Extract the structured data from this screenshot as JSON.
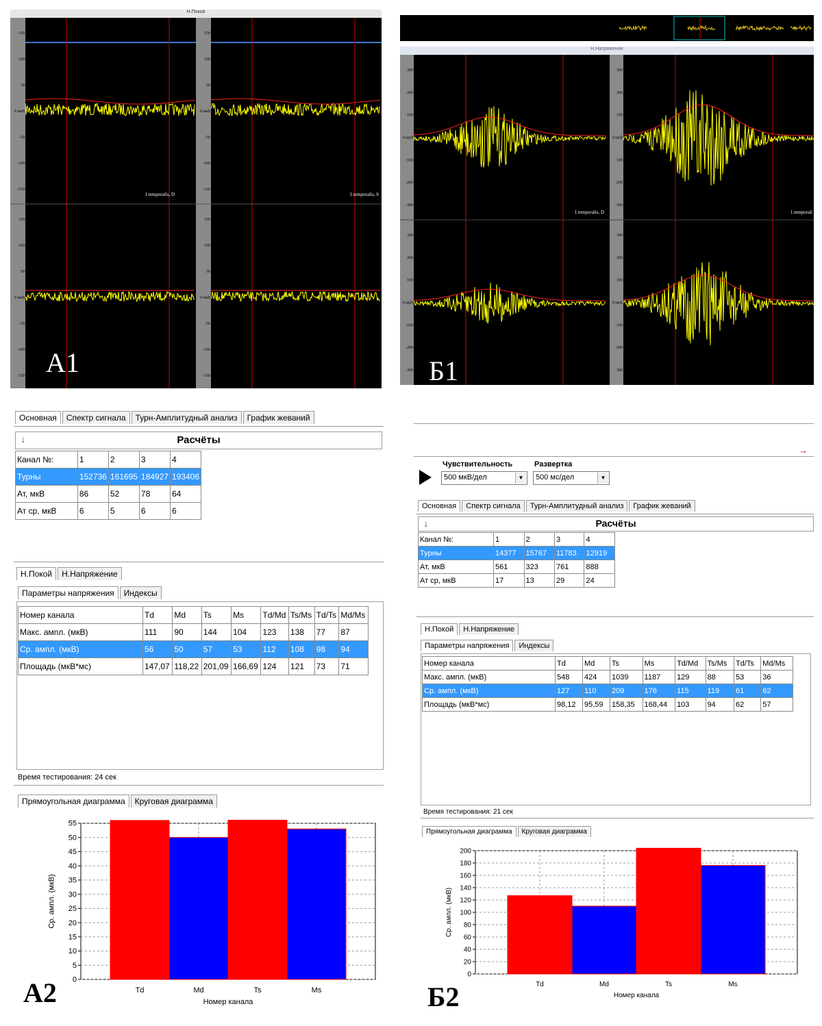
{
  "panels": {
    "a1": {
      "label": "A1",
      "window_title": "Н.Покой",
      "amp_ticks_left": [
        "150",
        "100",
        "50",
        "0 мкВ",
        "-50",
        "-100",
        "-150"
      ],
      "amp_ticks_right": [
        "150",
        "100",
        "50",
        "0 мкВ",
        "-50",
        "-100",
        "-150"
      ],
      "channel_labels": [
        "1.temporalis, D",
        "1.temporalis, S"
      ]
    },
    "b1": {
      "label": "Б1",
      "window_title": "Н.Напряжение",
      "amp_ticks": [
        "300",
        "200",
        "100",
        "0 мкВ",
        "-100",
        "-200",
        "-300"
      ],
      "channel_labels": [
        "1.temporalis, D",
        "1.temporali"
      ]
    },
    "a2": {
      "label": "A2",
      "main_tabs": [
        "Основная",
        "Спектр сигнала",
        "Турн-Амплитудный анализ",
        "График жеваний"
      ],
      "calc_title": "Расчёты",
      "calc_table": {
        "header": [
          "Канал №:",
          "1",
          "2",
          "3",
          "4"
        ],
        "rows": [
          [
            "Турны",
            "152736",
            "161695",
            "184927",
            "193406"
          ],
          [
            "Ат, мкВ",
            "86",
            "52",
            "78",
            "64"
          ],
          [
            "Ат ср, мкВ",
            "6",
            "5",
            "6",
            "6"
          ]
        ]
      },
      "mode_tabs": [
        "Н.Покой",
        "Н.Напряжение"
      ],
      "sub_tabs": [
        "Параметры напряжения",
        "Индексы"
      ],
      "param_table": {
        "header": [
          "Номер канала",
          "Td",
          "Md",
          "Ts",
          "Ms",
          "Td/Md",
          "Ts/Ms",
          "Td/Ts",
          "Md/Ms"
        ],
        "rows": [
          [
            "Макс. ампл. (мкВ)",
            "111",
            "90",
            "144",
            "104",
            "123",
            "138",
            "77",
            "87"
          ],
          [
            "Ср. ампл. (мкВ)",
            "56",
            "50",
            "57",
            "53",
            "112",
            "108",
            "98",
            "94"
          ],
          [
            "Площадь (мкВ*мс)",
            "147,07",
            "118,22",
            "201,09",
            "166,69",
            "124",
            "121",
            "73",
            "71"
          ]
        ]
      },
      "test_time": "Время тестирования: 24 сек",
      "chart_tabs": [
        "Прямоугольная диаграмма",
        "Круговая диаграмма"
      ]
    },
    "b2": {
      "label": "Б2",
      "sensitivity_label": "Чувствительность",
      "sensitivity_value": "500 мкВ/дел",
      "sweep_label": "Развертка",
      "sweep_value": "500 мс/дел",
      "main_tabs": [
        "Основная",
        "Спектр сигнала",
        "Турн-Амплитудный анализ",
        "График жеваний"
      ],
      "calc_title": "Расчёты",
      "calc_table": {
        "header": [
          "Канал №:",
          "1",
          "2",
          "3",
          "4"
        ],
        "rows": [
          [
            "Турны",
            "14377",
            "15767",
            "11783",
            "12919"
          ],
          [
            "Ат, мкВ",
            "561",
            "323",
            "761",
            "888"
          ],
          [
            "Ат ср, мкВ",
            "17",
            "13",
            "29",
            "24"
          ]
        ]
      },
      "mode_tabs": [
        "Н.Покой",
        "Н.Напряжение"
      ],
      "sub_tabs": [
        "Параметры напряжения",
        "Индексы"
      ],
      "param_table": {
        "header": [
          "Номер канала",
          "Td",
          "Md",
          "Ts",
          "Ms",
          "Td/Md",
          "Ts/Ms",
          "Td/Ts",
          "Md/Ms"
        ],
        "rows": [
          [
            "Макс. ампл. (мкВ)",
            "548",
            "424",
            "1039",
            "1187",
            "129",
            "88",
            "53",
            "36"
          ],
          [
            "Ср. ампл. (мкВ)",
            "127",
            "110",
            "209",
            "176",
            "115",
            "119",
            "61",
            "62"
          ],
          [
            "Площадь (мкВ*мс)",
            "98,12",
            "95,59",
            "158,35",
            "168,44",
            "103",
            "94",
            "62",
            "57"
          ]
        ]
      },
      "test_time": "Время тестирования: 21 сек",
      "chart_tabs": [
        "Прямоугольная диаграмма",
        "Круговая диаграмма"
      ]
    }
  },
  "chart_data": [
    {
      "type": "bar",
      "categories": [
        "Td",
        "Md",
        "Ts",
        "Ms"
      ],
      "values": [
        56,
        50,
        57,
        53
      ],
      "colors": [
        "#ff0000",
        "#0000ff",
        "#ff0000",
        "#0000ff"
      ],
      "xlabel": "Номер канала",
      "ylabel": "Ср. ампл. (мкВ)",
      "ylim": [
        0,
        55
      ],
      "yticks": [
        0,
        5,
        10,
        15,
        20,
        25,
        30,
        35,
        40,
        45,
        50,
        55
      ],
      "grid": true
    },
    {
      "type": "bar",
      "categories": [
        "Td",
        "Md",
        "Ts",
        "Ms"
      ],
      "values": [
        127,
        110,
        209,
        176
      ],
      "colors": [
        "#ff0000",
        "#0000ff",
        "#ff0000",
        "#0000ff"
      ],
      "xlabel": "Номер канала",
      "ylabel": "Ср. ампл. (мкВ)",
      "ylim": [
        0,
        200
      ],
      "yticks": [
        0,
        20,
        40,
        60,
        80,
        100,
        120,
        140,
        160,
        180,
        200
      ],
      "grid": true
    }
  ],
  "colors": {
    "signal": "#ffff00",
    "envelope": "#ff2020",
    "marker": "#cc0000",
    "selection": "#3399ff",
    "bar_red": "#ff0000",
    "bar_blue": "#0000ff"
  }
}
